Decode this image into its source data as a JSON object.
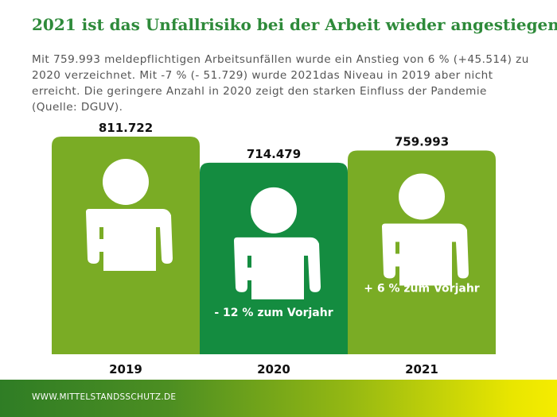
{
  "header": {
    "title": "2021 ist das Unfallrisiko bei der Arbeit wieder angestiegen",
    "subtitle": "Mit 759.993 meldepflichtigen Arbeitsunfällen wurde ein Anstieg von 6 % (+45.514) zu 2020 verzeichnet. Mit -7 % (- 51.729) wurde 2021das Niveau in 2019 aber nicht erreicht. Die geringere Anzahl in 2020 zeigt den starken Einfluss der Pandemie (Quelle: DGUV)."
  },
  "chart_data": {
    "type": "bar",
    "categories": [
      "2019",
      "2020",
      "2021"
    ],
    "values": [
      811722,
      714479,
      759993
    ],
    "value_labels": [
      "811.722",
      "714.479",
      "759.993"
    ],
    "change_labels": [
      "",
      "- 12 % zum Vorjahr",
      "+ 6 % zum Vorjahr"
    ],
    "bar_colors": [
      "#7aac25",
      "#148c40",
      "#7aac25"
    ],
    "icon": "injured-arm-sling-icon",
    "ylim": [
      0,
      811722
    ]
  },
  "footer": {
    "text": "WWW.MITTELSTANDSSCHUTZ.DE"
  }
}
